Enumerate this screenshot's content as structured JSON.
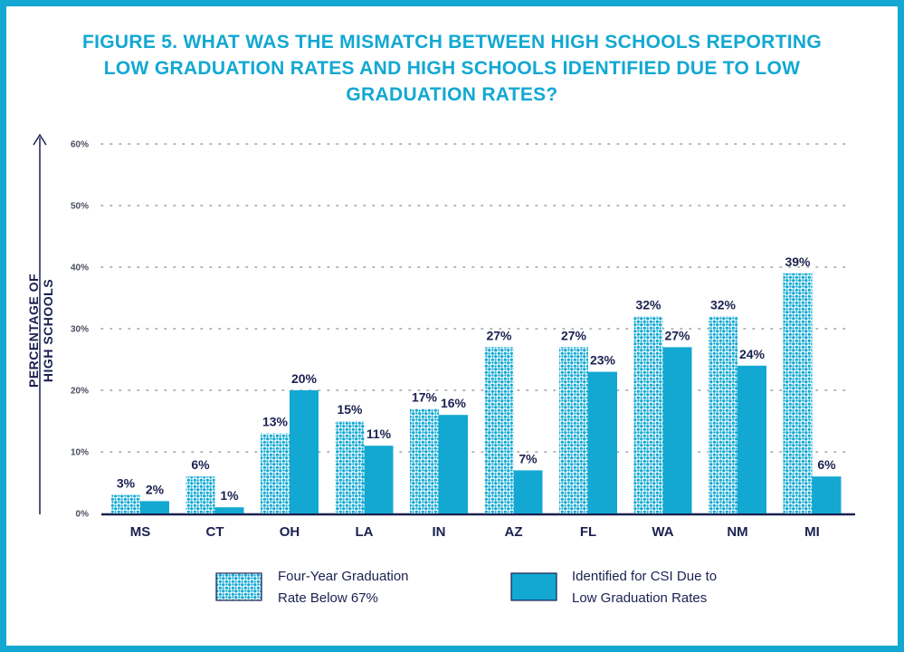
{
  "title": "FIGURE 5. WHAT WAS THE MISMATCH BETWEEN HIGH SCHOOLS REPORTING LOW GRADUATION RATES AND HIGH SCHOOLS IDENTIFIED DUE TO LOW GRADUATION RATES?",
  "colors": {
    "frame": "#12a8d2",
    "title": "#12a8d2",
    "bar_solid": "#12a8d2",
    "bar_dotted_dots": "#12a8d2",
    "text_dark": "#1b2150",
    "grid": "#9aa0a8"
  },
  "chart_data": {
    "type": "bar",
    "title": "FIGURE 5. WHAT WAS THE MISMATCH BETWEEN HIGH SCHOOLS REPORTING LOW GRADUATION RATES AND HIGH SCHOOLS IDENTIFIED DUE TO LOW GRADUATION RATES?",
    "ylabel": "PERCENTAGE OF HIGH SCHOOLS",
    "xlabel": "",
    "ylim": [
      0,
      60
    ],
    "yticks": [
      0,
      10,
      20,
      30,
      40,
      50,
      60
    ],
    "ytick_labels": [
      "0%",
      "10%",
      "20%",
      "30%",
      "40%",
      "50%",
      "60%"
    ],
    "grid": true,
    "legend_position": "bottom",
    "categories": [
      "MS",
      "CT",
      "OH",
      "LA",
      "IN",
      "AZ",
      "FL",
      "WA",
      "NM",
      "MI"
    ],
    "series": [
      {
        "name": "Four-Year Graduation Rate Below 67%",
        "legend_lines": [
          "Four-Year Graduation",
          "Rate Below 67%"
        ],
        "style": "dotted",
        "values": [
          3,
          6,
          13,
          15,
          17,
          27,
          27,
          32,
          32,
          39
        ],
        "labels": [
          "3%",
          "6%",
          "13%",
          "15%",
          "17%",
          "27%",
          "27%",
          "32%",
          "32%",
          "39%"
        ]
      },
      {
        "name": "Identified for CSI Due to Low Graduation Rates",
        "legend_lines": [
          "Identified for CSI Due to",
          "Low Graduation Rates"
        ],
        "style": "solid",
        "values": [
          2,
          1,
          20,
          11,
          16,
          7,
          23,
          27,
          24,
          6
        ],
        "labels": [
          "2%",
          "1%",
          "20%",
          "11%",
          "16%",
          "7%",
          "23%",
          "27%",
          "24%",
          "6%"
        ]
      }
    ]
  }
}
